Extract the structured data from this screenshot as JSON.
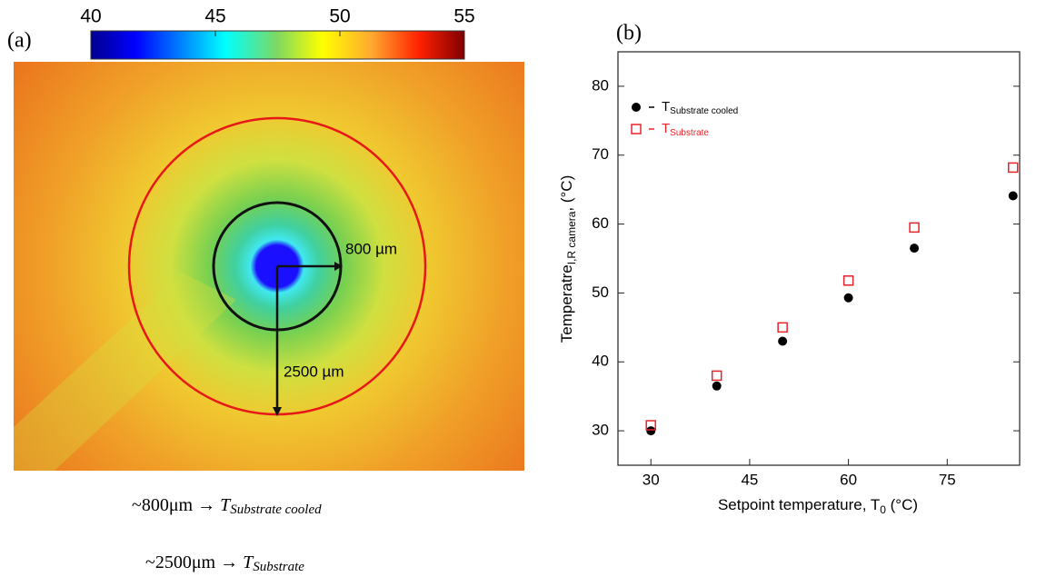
{
  "chart_data": [
    {
      "type": "image-map",
      "label": "(a)",
      "colorbar": {
        "clim": [
          40,
          55
        ],
        "ticks": [
          40,
          45,
          50,
          55
        ]
      },
      "annotations": [
        "800 µm",
        "2500 µm"
      ],
      "captions": [
        {
          "text": "~800μm →",
          "var": "T",
          "sub": "Substrate cooled"
        },
        {
          "text": "~2500μm →",
          "var": "T",
          "sub": "Substrate"
        }
      ]
    },
    {
      "type": "scatter",
      "label": "(b)",
      "x_label": {
        "main": "Setpoint temperature, T",
        "sub": "0",
        "unit": " (°C)"
      },
      "y_label": {
        "main": "Temperatre",
        "sub": "I,R camera",
        "unit": ", (°C)"
      },
      "x": [
        30,
        40,
        50,
        60,
        70,
        85
      ],
      "xlim": [
        25,
        86
      ],
      "xticks": [
        30,
        45,
        60,
        75
      ],
      "ylim": [
        25,
        85
      ],
      "yticks": [
        30,
        40,
        50,
        60,
        70,
        80
      ],
      "legend": "upper left",
      "series": [
        {
          "name": "Substrate cooled",
          "symbol": "T",
          "color": "#000000",
          "marker": "circle",
          "values": [
            30.0,
            36.5,
            43.0,
            49.3,
            56.5,
            64.1
          ]
        },
        {
          "name": "Substrate",
          "symbol": "T",
          "color": "#e8242a",
          "marker": "square-open",
          "values": [
            30.8,
            38.0,
            45.0,
            51.8,
            59.5,
            68.2
          ]
        }
      ]
    }
  ]
}
